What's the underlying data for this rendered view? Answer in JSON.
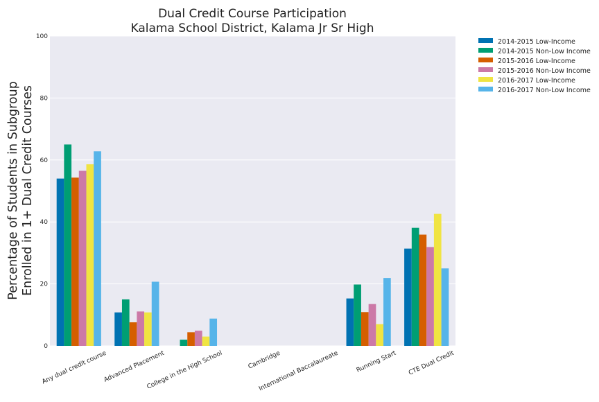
{
  "chart_data": {
    "type": "bar",
    "title": "Dual Credit Course Participation",
    "subtitle": "Kalama School District, Kalama Jr Sr High",
    "ylabel": [
      "Percentage of Students in Subgroup",
      "Enrolled in 1+ Dual Credit Courses"
    ],
    "xlabel": "",
    "ylim": [
      0,
      100
    ],
    "yticks": [
      0,
      20,
      40,
      60,
      80,
      100
    ],
    "grid": true,
    "legend_placement": "outside-top-right",
    "categories": [
      "Any dual credit course",
      "Advanced Placement",
      "College in the High School",
      "Cambridge",
      "International Baccalaureate",
      "Running Start",
      "CTE Dual Credit"
    ],
    "series": [
      {
        "name": "2014-2015 Low-Income",
        "color": "#0072B2",
        "values": [
          54.0,
          10.8,
          null,
          null,
          null,
          15.3,
          31.4
        ]
      },
      {
        "name": "2014-2015 Non-Low Income",
        "color": "#009E73",
        "values": [
          65.0,
          15.0,
          2.0,
          null,
          null,
          19.8,
          38.1
        ]
      },
      {
        "name": "2015-2016 Low-Income",
        "color": "#D55E00",
        "values": [
          54.3,
          7.6,
          4.4,
          null,
          null,
          10.9,
          35.9
        ]
      },
      {
        "name": "2015-2016 Non-Low Income",
        "color": "#CC79A7",
        "values": [
          56.5,
          11.1,
          4.9,
          null,
          null,
          13.5,
          31.9
        ]
      },
      {
        "name": "2016-2017 Low-Income",
        "color": "#F0E442",
        "values": [
          58.6,
          10.8,
          3.0,
          null,
          null,
          7.0,
          42.6
        ]
      },
      {
        "name": "2016-2017 Non-Low Income",
        "color": "#56B4E9",
        "values": [
          62.8,
          20.7,
          8.8,
          null,
          null,
          21.9,
          25.0
        ]
      }
    ]
  }
}
